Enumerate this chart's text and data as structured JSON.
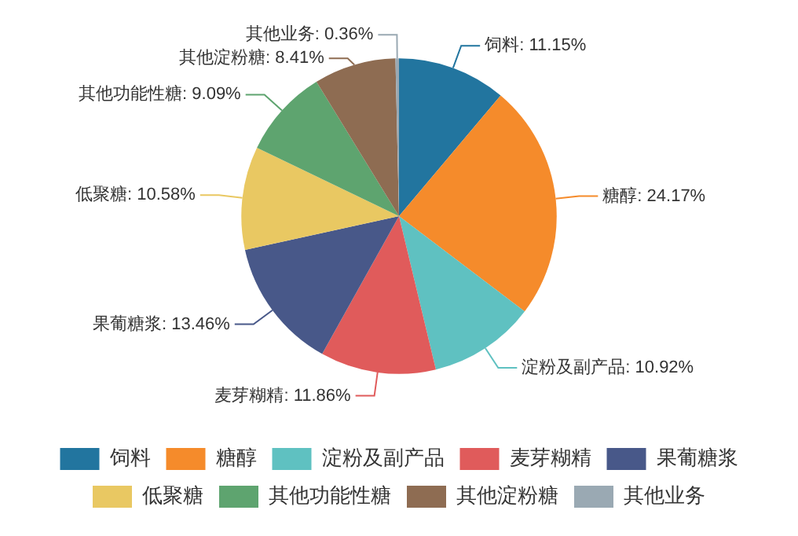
{
  "chart_data": {
    "type": "pie",
    "categories": [
      "饲料",
      "糖醇",
      "淀粉及副产品",
      "麦芽糊精",
      "果葡糖浆",
      "低聚糖",
      "其他功能性糖",
      "其他淀粉糖",
      "其他业务"
    ],
    "values": [
      11.15,
      24.17,
      10.92,
      11.86,
      13.46,
      10.58,
      9.09,
      8.41,
      0.36
    ],
    "value_labels": [
      "饲料: 11.15%",
      "糖醇: 24.17%",
      "淀粉及副产品: 10.92%",
      "麦芽糊精: 11.86%",
      "果葡糖浆: 13.46%",
      "低聚糖: 10.58%",
      "其他功能性糖: 9.09%",
      "其他淀粉糖: 8.41%",
      "其他业务: 0.36%"
    ],
    "colors": [
      "#22759f",
      "#f58b2b",
      "#5fc1c1",
      "#e05b5b",
      "#485889",
      "#e9c862",
      "#5ea46f",
      "#8e6c52",
      "#9aa9b3"
    ],
    "legend": "bottom"
  }
}
